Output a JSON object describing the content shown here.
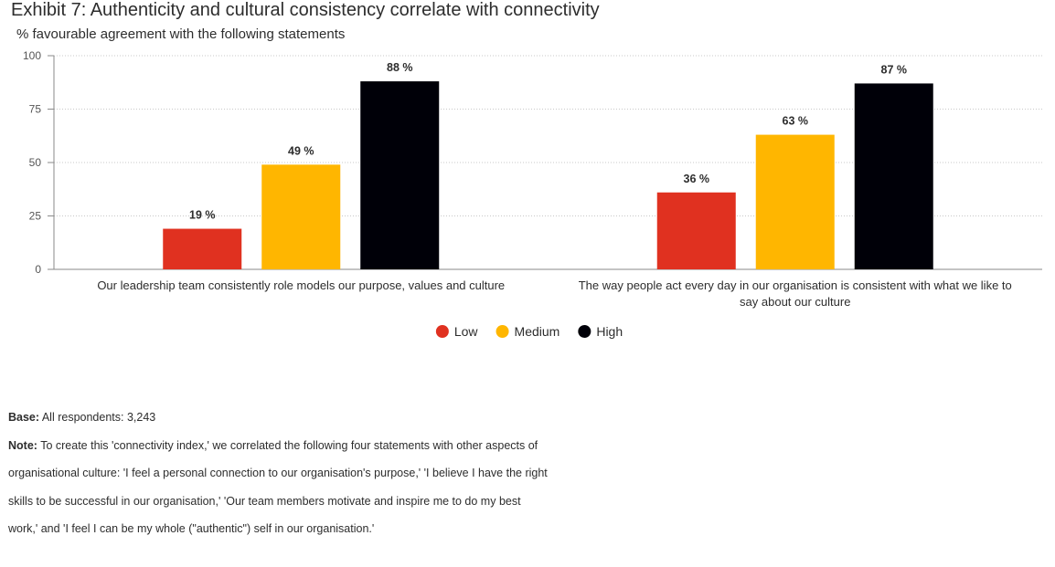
{
  "title": "Exhibit 7: Authenticity and cultural consistency correlate with connectivity",
  "subtitle": "% favourable agreement with the following statements",
  "chart_data": {
    "type": "bar",
    "ylim": [
      0,
      100
    ],
    "yticks": [
      "0",
      "25",
      "50",
      "75",
      "100"
    ],
    "ytick_values": [
      0,
      25,
      50,
      75,
      100
    ],
    "grid": true,
    "legend_position": "bottom-center",
    "categories": [
      [
        "Our leadership team consistently role models our purpose, values and culture"
      ],
      [
        "The way people act every day in our organisation is consistent with what we like to",
        "say about our culture"
      ]
    ],
    "series": [
      {
        "name": "Low",
        "color": "#e03120",
        "values": [
          19,
          36
        ],
        "labels": [
          "19 %",
          "36 %"
        ]
      },
      {
        "name": "Medium",
        "color": "#ffb600",
        "values": [
          49,
          63
        ],
        "labels": [
          "49 %",
          "63 %"
        ]
      },
      {
        "name": "High",
        "color": "#000008",
        "values": [
          88,
          87
        ],
        "labels": [
          "88 %",
          "87 %"
        ]
      }
    ]
  },
  "footer": {
    "base_label": "Base:",
    "base_text": "All respondents: 3,243",
    "note_label": "Note:",
    "note_text": "To create this 'connectivity index,' we correlated the following four statements with other aspects of organisational culture: 'I feel a personal connection to our organisation's purpose,' 'I believe I have the right skills to be successful in our organisation,' 'Our team members motivate and inspire me to do my best work,' and 'I feel I can be my whole (\"authentic\") self in our organisation.'"
  }
}
